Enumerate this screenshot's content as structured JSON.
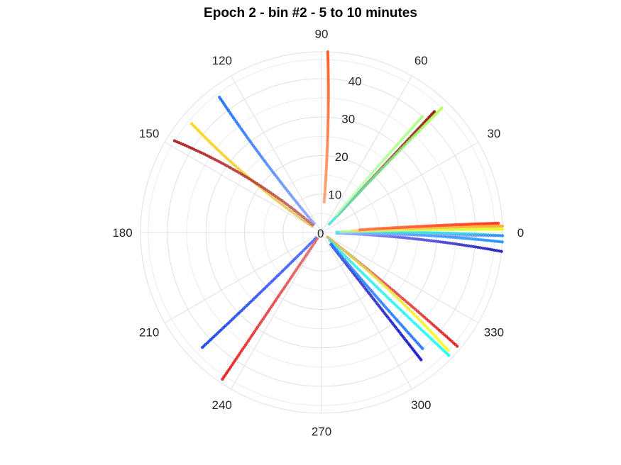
{
  "chart_data": {
    "type": "scatter",
    "title": "Epoch 2 - bin #2 - 5 to 10 minutes",
    "projection": "polar",
    "theta_unit": "degrees",
    "theta_ticks": [
      0,
      30,
      60,
      90,
      120,
      150,
      180,
      210,
      240,
      270,
      300,
      330
    ],
    "theta_tick_labels": [
      "0",
      "30",
      "60",
      "90",
      "120",
      "150",
      "180",
      "210",
      "240",
      "270",
      "300",
      "330"
    ],
    "r_ticks": [
      0,
      10,
      20,
      30,
      40
    ],
    "r_tick_labels": [
      "0",
      "10",
      "20",
      "30",
      "40"
    ],
    "rlim": [
      0,
      47
    ],
    "rlabel_angle": 80,
    "grid": true,
    "marker_size": 2.2,
    "series": [
      {
        "theta": [
          85,
          88
        ],
        "r": [
          8,
          47
        ],
        "colors": [
          "#ff9966",
          "#ff4500"
        ],
        "opacity": 0.8
      },
      {
        "theta": [
          47,
          47
        ],
        "r": [
          6,
          43
        ],
        "colors": [
          "#c06060",
          "#8b0000"
        ],
        "opacity": 0.8
      },
      {
        "theta": [
          47,
          46
        ],
        "r": [
          3,
          45
        ],
        "colors": [
          "#40e0d0",
          "#b0ff40"
        ],
        "opacity": 0.8
      },
      {
        "theta": [
          50,
          49
        ],
        "r": [
          6,
          40
        ],
        "colors": [
          "#c0ffc0",
          "#90ff60"
        ],
        "opacity": 0.6
      },
      {
        "theta": [
          -2,
          -6
        ],
        "r": [
          4,
          47
        ],
        "colors": [
          "#8080ff",
          "#0000aa"
        ],
        "opacity": 0.8
      },
      {
        "theta": [
          0,
          -3
        ],
        "r": [
          4,
          47
        ],
        "colors": [
          "#60d0ff",
          "#0080ff"
        ],
        "opacity": 0.8
      },
      {
        "theta": [
          1,
          -1
        ],
        "r": [
          4,
          47
        ],
        "colors": [
          "#40f0f0",
          "#00cccc"
        ],
        "opacity": 0.8
      },
      {
        "theta": [
          2,
          1
        ],
        "r": [
          5,
          47
        ],
        "colors": [
          "#c0ff80",
          "#e0ff00"
        ],
        "opacity": 0.8
      },
      {
        "theta": [
          3,
          2
        ],
        "r": [
          8,
          47
        ],
        "colors": [
          "#ffd080",
          "#ffa000"
        ],
        "opacity": 0.8
      },
      {
        "theta": [
          4,
          3
        ],
        "r": [
          10,
          46
        ],
        "colors": [
          "#ff7040",
          "#ff2000"
        ],
        "opacity": 0.8
      },
      {
        "theta": [
          -2,
          -1
        ],
        "r": [
          5,
          47
        ],
        "colors": [
          "#a0c0ff",
          "#4060ff"
        ],
        "opacity": 0.5
      },
      {
        "theta": [
          -38,
          -40
        ],
        "r": [
          2,
          46
        ],
        "colors": [
          "#e07070",
          "#e00000"
        ],
        "opacity": 0.8
      },
      {
        "theta": [
          -38,
          -43
        ],
        "r": [
          2,
          45
        ],
        "colors": [
          "#d0d060",
          "#ffff00"
        ],
        "opacity": 0.8
      },
      {
        "theta": [
          -45,
          -44
        ],
        "r": [
          3,
          46
        ],
        "colors": [
          "#40e0e0",
          "#00ffff"
        ],
        "opacity": 0.8
      },
      {
        "theta": [
          -52,
          -52
        ],
        "r": [
          4,
          42
        ],
        "colors": [
          "#4040c0",
          "#0000c0"
        ],
        "opacity": 0.8
      },
      {
        "theta": [
          -50,
          -49
        ],
        "r": [
          4,
          40
        ],
        "colors": [
          "#2080ff",
          "#0060ff"
        ],
        "opacity": 0.7
      },
      {
        "theta": [
          225,
          224
        ],
        "r": [
          2,
          43
        ],
        "colors": [
          "#4060ff",
          "#0030e0"
        ],
        "opacity": 0.8
      },
      {
        "theta": [
          236,
          236
        ],
        "r": [
          2,
          46
        ],
        "colors": [
          "#e06060",
          "#e00000"
        ],
        "opacity": 0.8
      },
      {
        "theta": [
          130,
          127
        ],
        "r": [
          3,
          44
        ],
        "colors": [
          "#80a0ff",
          "#0060ff"
        ],
        "opacity": 0.8
      },
      {
        "theta": [
          146,
          140
        ],
        "r": [
          3,
          44
        ],
        "colors": [
          "#e0c060",
          "#ffd000"
        ],
        "opacity": 0.8
      },
      {
        "theta": [
          139,
          148
        ],
        "r": [
          3,
          45
        ],
        "colors": [
          "#c06060",
          "#a00000"
        ],
        "opacity": 0.8
      }
    ]
  }
}
